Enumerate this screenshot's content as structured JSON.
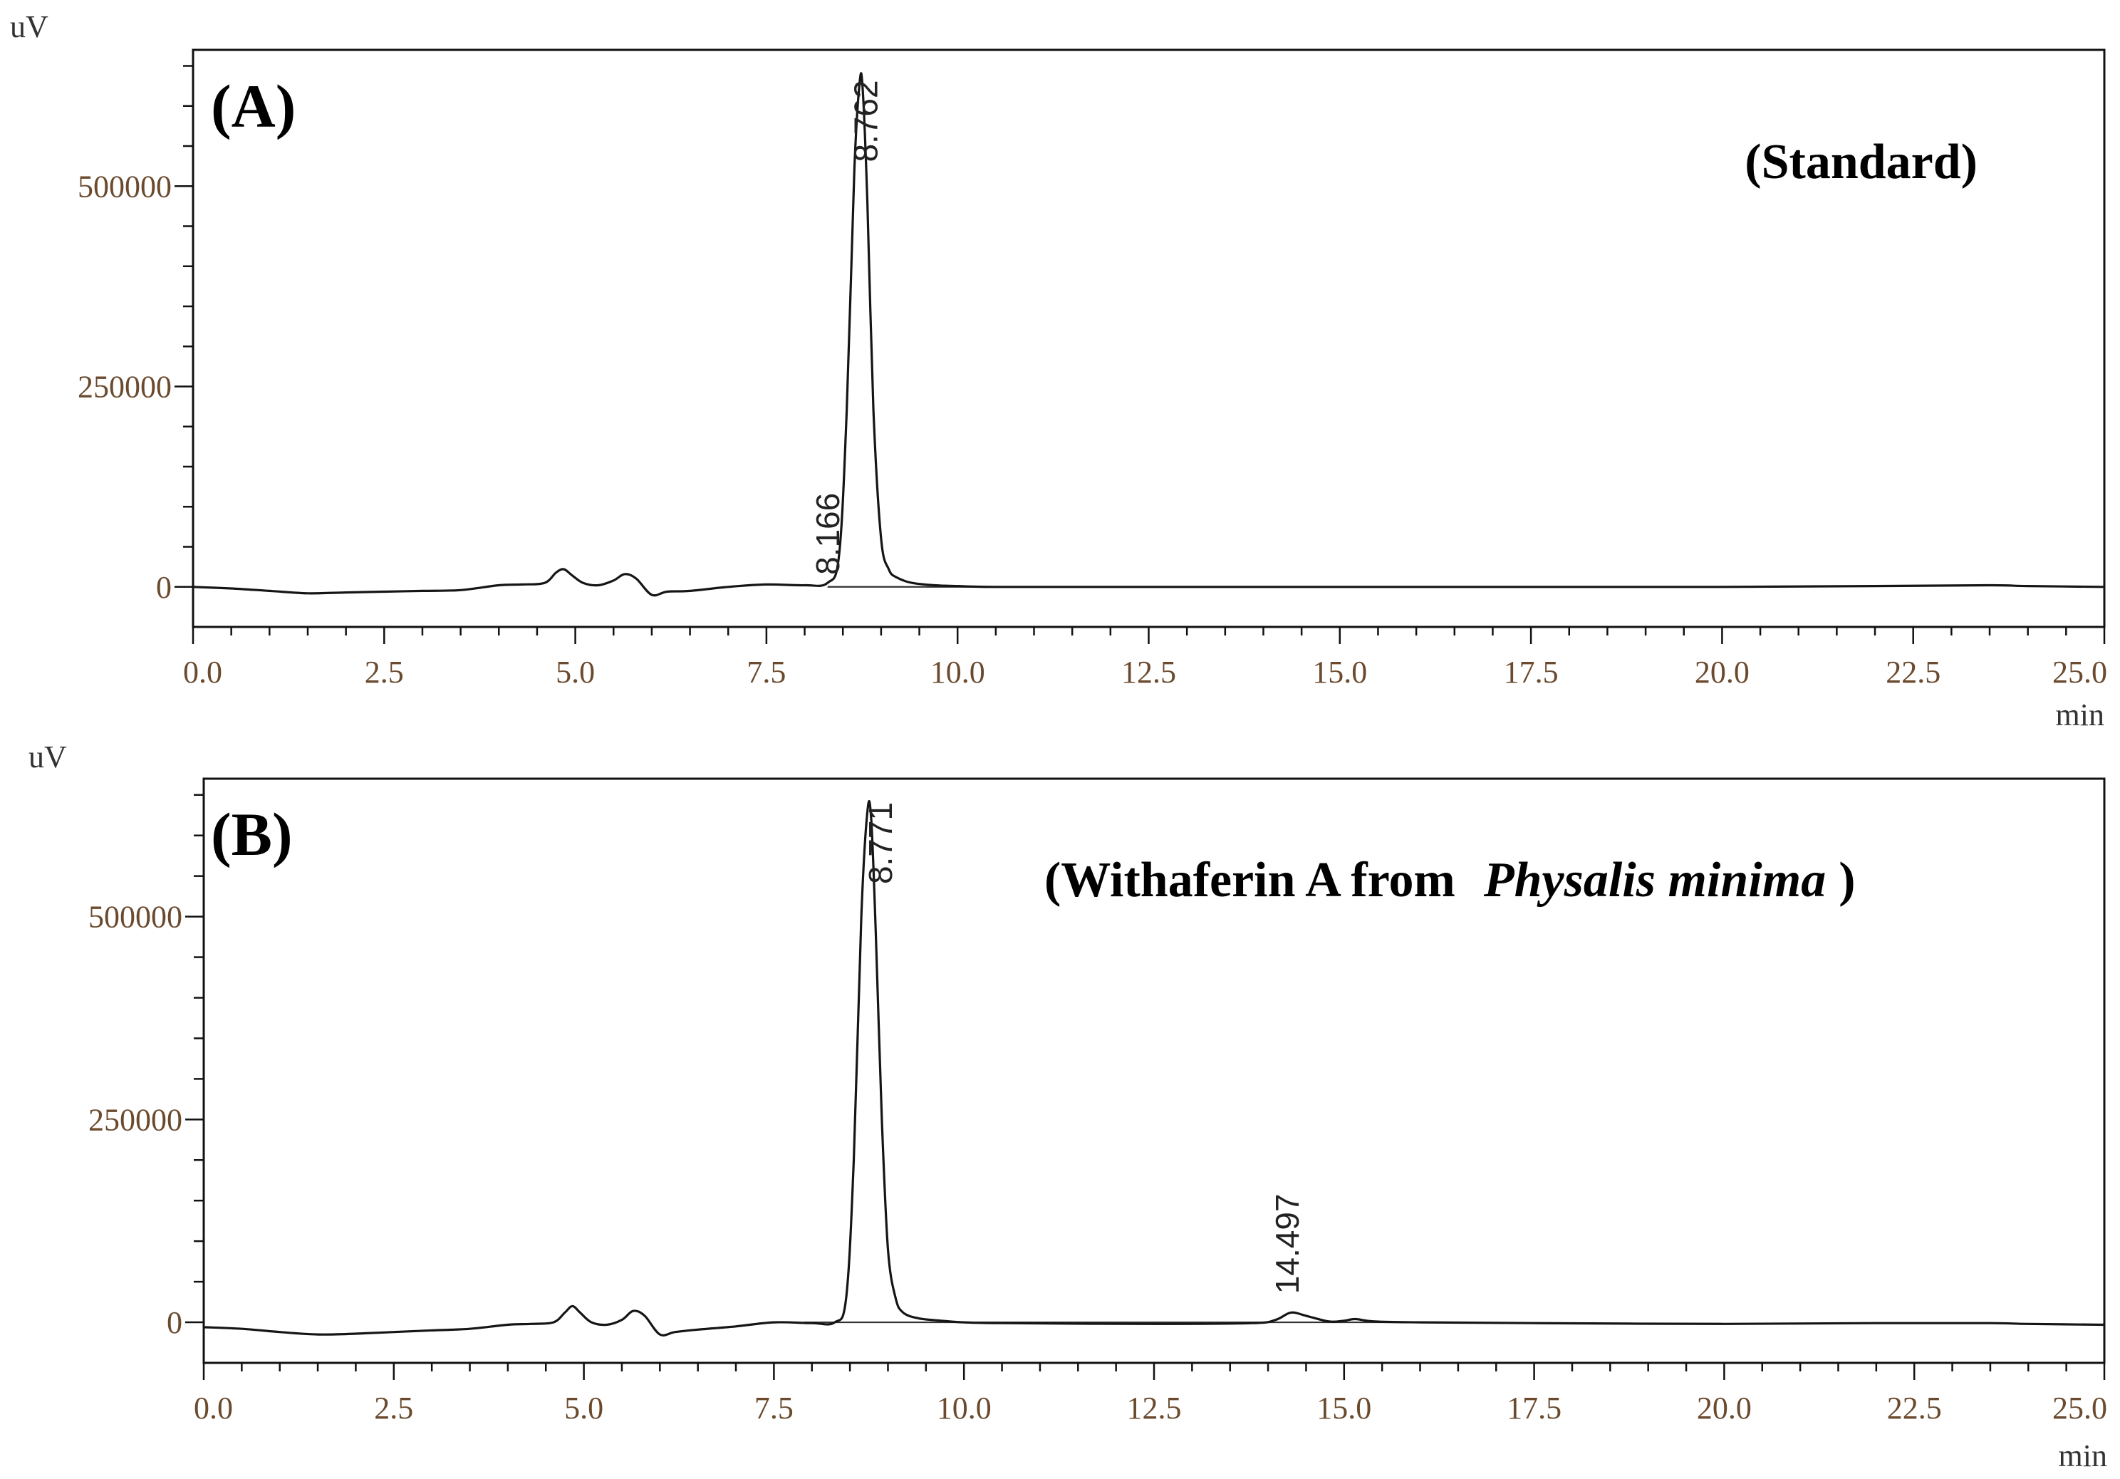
{
  "chart_data": [
    {
      "type": "line",
      "panel_label": "(A)",
      "title": "(Standard)",
      "title_italic": "",
      "title_suffix": "",
      "ylabel": "uV",
      "xlabel": "min",
      "xlim": [
        0,
        25
      ],
      "ylim": [
        -50000,
        670000
      ],
      "xticks": [
        "0.0",
        "2.5",
        "5.0",
        "7.5",
        "10.0",
        "12.5",
        "15.0",
        "17.5",
        "20.0",
        "22.5",
        "25.0"
      ],
      "yticks": [
        {
          "value": 0,
          "label": "0"
        },
        {
          "value": 250000,
          "label": "250000"
        },
        {
          "value": 500000,
          "label": "500000"
        }
      ],
      "peak_labels": [
        {
          "label": "8.762",
          "x": 8.95,
          "y": 530000
        },
        {
          "label": "8.166",
          "x": 8.45,
          "y": 15000
        }
      ],
      "baseline_segment": [
        8.3,
        10.7
      ],
      "series": [
        {
          "x": [
            0,
            0.5,
            1.0,
            1.5,
            2.0,
            2.5,
            3.0,
            3.5,
            4.0,
            4.3,
            4.6,
            4.75,
            4.85,
            4.95,
            5.1,
            5.3,
            5.5,
            5.65,
            5.8,
            6.0,
            6.2,
            6.5,
            7.0,
            7.5,
            8.0,
            8.3,
            8.45,
            8.55,
            8.65,
            8.72,
            8.76,
            8.82,
            8.9,
            9.0,
            9.1,
            9.2,
            9.4,
            9.7,
            10.0,
            10.5,
            12.5,
            15.0,
            17.5,
            20.0,
            22.0,
            23.5,
            24.0,
            25.0
          ],
          "y": [
            0,
            -2000,
            -5000,
            -8000,
            -7000,
            -6000,
            -5000,
            -4000,
            2000,
            3000,
            5000,
            18000,
            22000,
            15000,
            5000,
            2000,
            8000,
            16000,
            10000,
            -10000,
            -6000,
            -5000,
            0,
            3000,
            2000,
            5000,
            40000,
            220000,
            520000,
            630000,
            620000,
            480000,
            220000,
            60000,
            22000,
            12000,
            5000,
            2000,
            1000,
            0,
            0,
            0,
            0,
            0,
            1000,
            2000,
            1000,
            0
          ]
        }
      ]
    },
    {
      "type": "line",
      "panel_label": "(B)",
      "title": "(Withaferin A from",
      "title_italic": "Physalis minima",
      "title_suffix": ")",
      "ylabel": "uV",
      "xlabel": "min",
      "xlim": [
        0,
        25
      ],
      "ylim": [
        -50000,
        670000
      ],
      "xticks": [
        "0.0",
        "2.5",
        "5.0",
        "7.5",
        "10.0",
        "12.5",
        "15.0",
        "17.5",
        "20.0",
        "22.5",
        "25.0"
      ],
      "yticks": [
        {
          "value": 0,
          "label": "0"
        },
        {
          "value": 250000,
          "label": "250000"
        },
        {
          "value": 500000,
          "label": "500000"
        }
      ],
      "peak_labels": [
        {
          "label": "8.771",
          "x": 9.05,
          "y": 540000
        },
        {
          "label": "14.497",
          "x": 14.4,
          "y": 35000
        }
      ],
      "baseline_segment": [
        7.9,
        16.0
      ],
      "series": [
        {
          "x": [
            0,
            0.5,
            1.0,
            1.5,
            2.0,
            2.5,
            3.0,
            3.5,
            4.0,
            4.3,
            4.6,
            4.75,
            4.85,
            4.95,
            5.1,
            5.3,
            5.5,
            5.65,
            5.8,
            6.0,
            6.2,
            6.5,
            7.0,
            7.5,
            8.0,
            8.3,
            8.45,
            8.55,
            8.65,
            8.73,
            8.78,
            8.84,
            8.92,
            9.0,
            9.1,
            9.2,
            9.4,
            9.7,
            10.0,
            10.5,
            12.5,
            13.8,
            14.1,
            14.3,
            14.5,
            14.8,
            15.0,
            15.15,
            15.4,
            16.0,
            17.5,
            20.0,
            22.0,
            23.5,
            24.0,
            25.0
          ],
          "y": [
            -6000,
            -8000,
            -12000,
            -15000,
            -14000,
            -12000,
            -10000,
            -8000,
            -3000,
            -2000,
            0,
            12000,
            20000,
            12000,
            0,
            -3000,
            3000,
            14000,
            8000,
            -15000,
            -12000,
            -9000,
            -5000,
            0,
            -1000,
            0,
            30000,
            200000,
            500000,
            630000,
            620000,
            480000,
            250000,
            90000,
            30000,
            12000,
            5000,
            2000,
            0,
            -1000,
            -2000,
            -1000,
            3000,
            12000,
            8000,
            1000,
            2000,
            4000,
            1000,
            0,
            -1000,
            -2000,
            -1000,
            -1000,
            -2000,
            -3000
          ]
        }
      ]
    }
  ]
}
